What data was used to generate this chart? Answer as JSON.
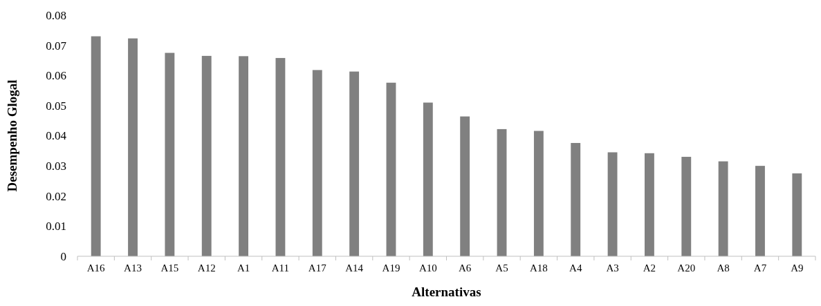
{
  "chart_data": {
    "type": "bar",
    "xlabel": "Alternativas",
    "ylabel": "Desempenho Glogal",
    "categories": [
      "A16",
      "A13",
      "A15",
      "A12",
      "A1",
      "A11",
      "A17",
      "A14",
      "A19",
      "A10",
      "A6",
      "A5",
      "A18",
      "A4",
      "A3",
      "A2",
      "A20",
      "A8",
      "A7",
      "A9"
    ],
    "values": [
      0.073,
      0.0723,
      0.0675,
      0.0665,
      0.0664,
      0.0658,
      0.0618,
      0.0613,
      0.0576,
      0.051,
      0.0464,
      0.0422,
      0.0416,
      0.0376,
      0.0345,
      0.0342,
      0.033,
      0.0315,
      0.03,
      0.0275
    ],
    "color": "#808080",
    "ylim": [
      0,
      0.08
    ],
    "yticks": [
      0,
      0.01,
      0.02,
      0.03,
      0.04,
      0.05,
      0.06,
      0.07,
      0.08
    ],
    "grid": false
  }
}
